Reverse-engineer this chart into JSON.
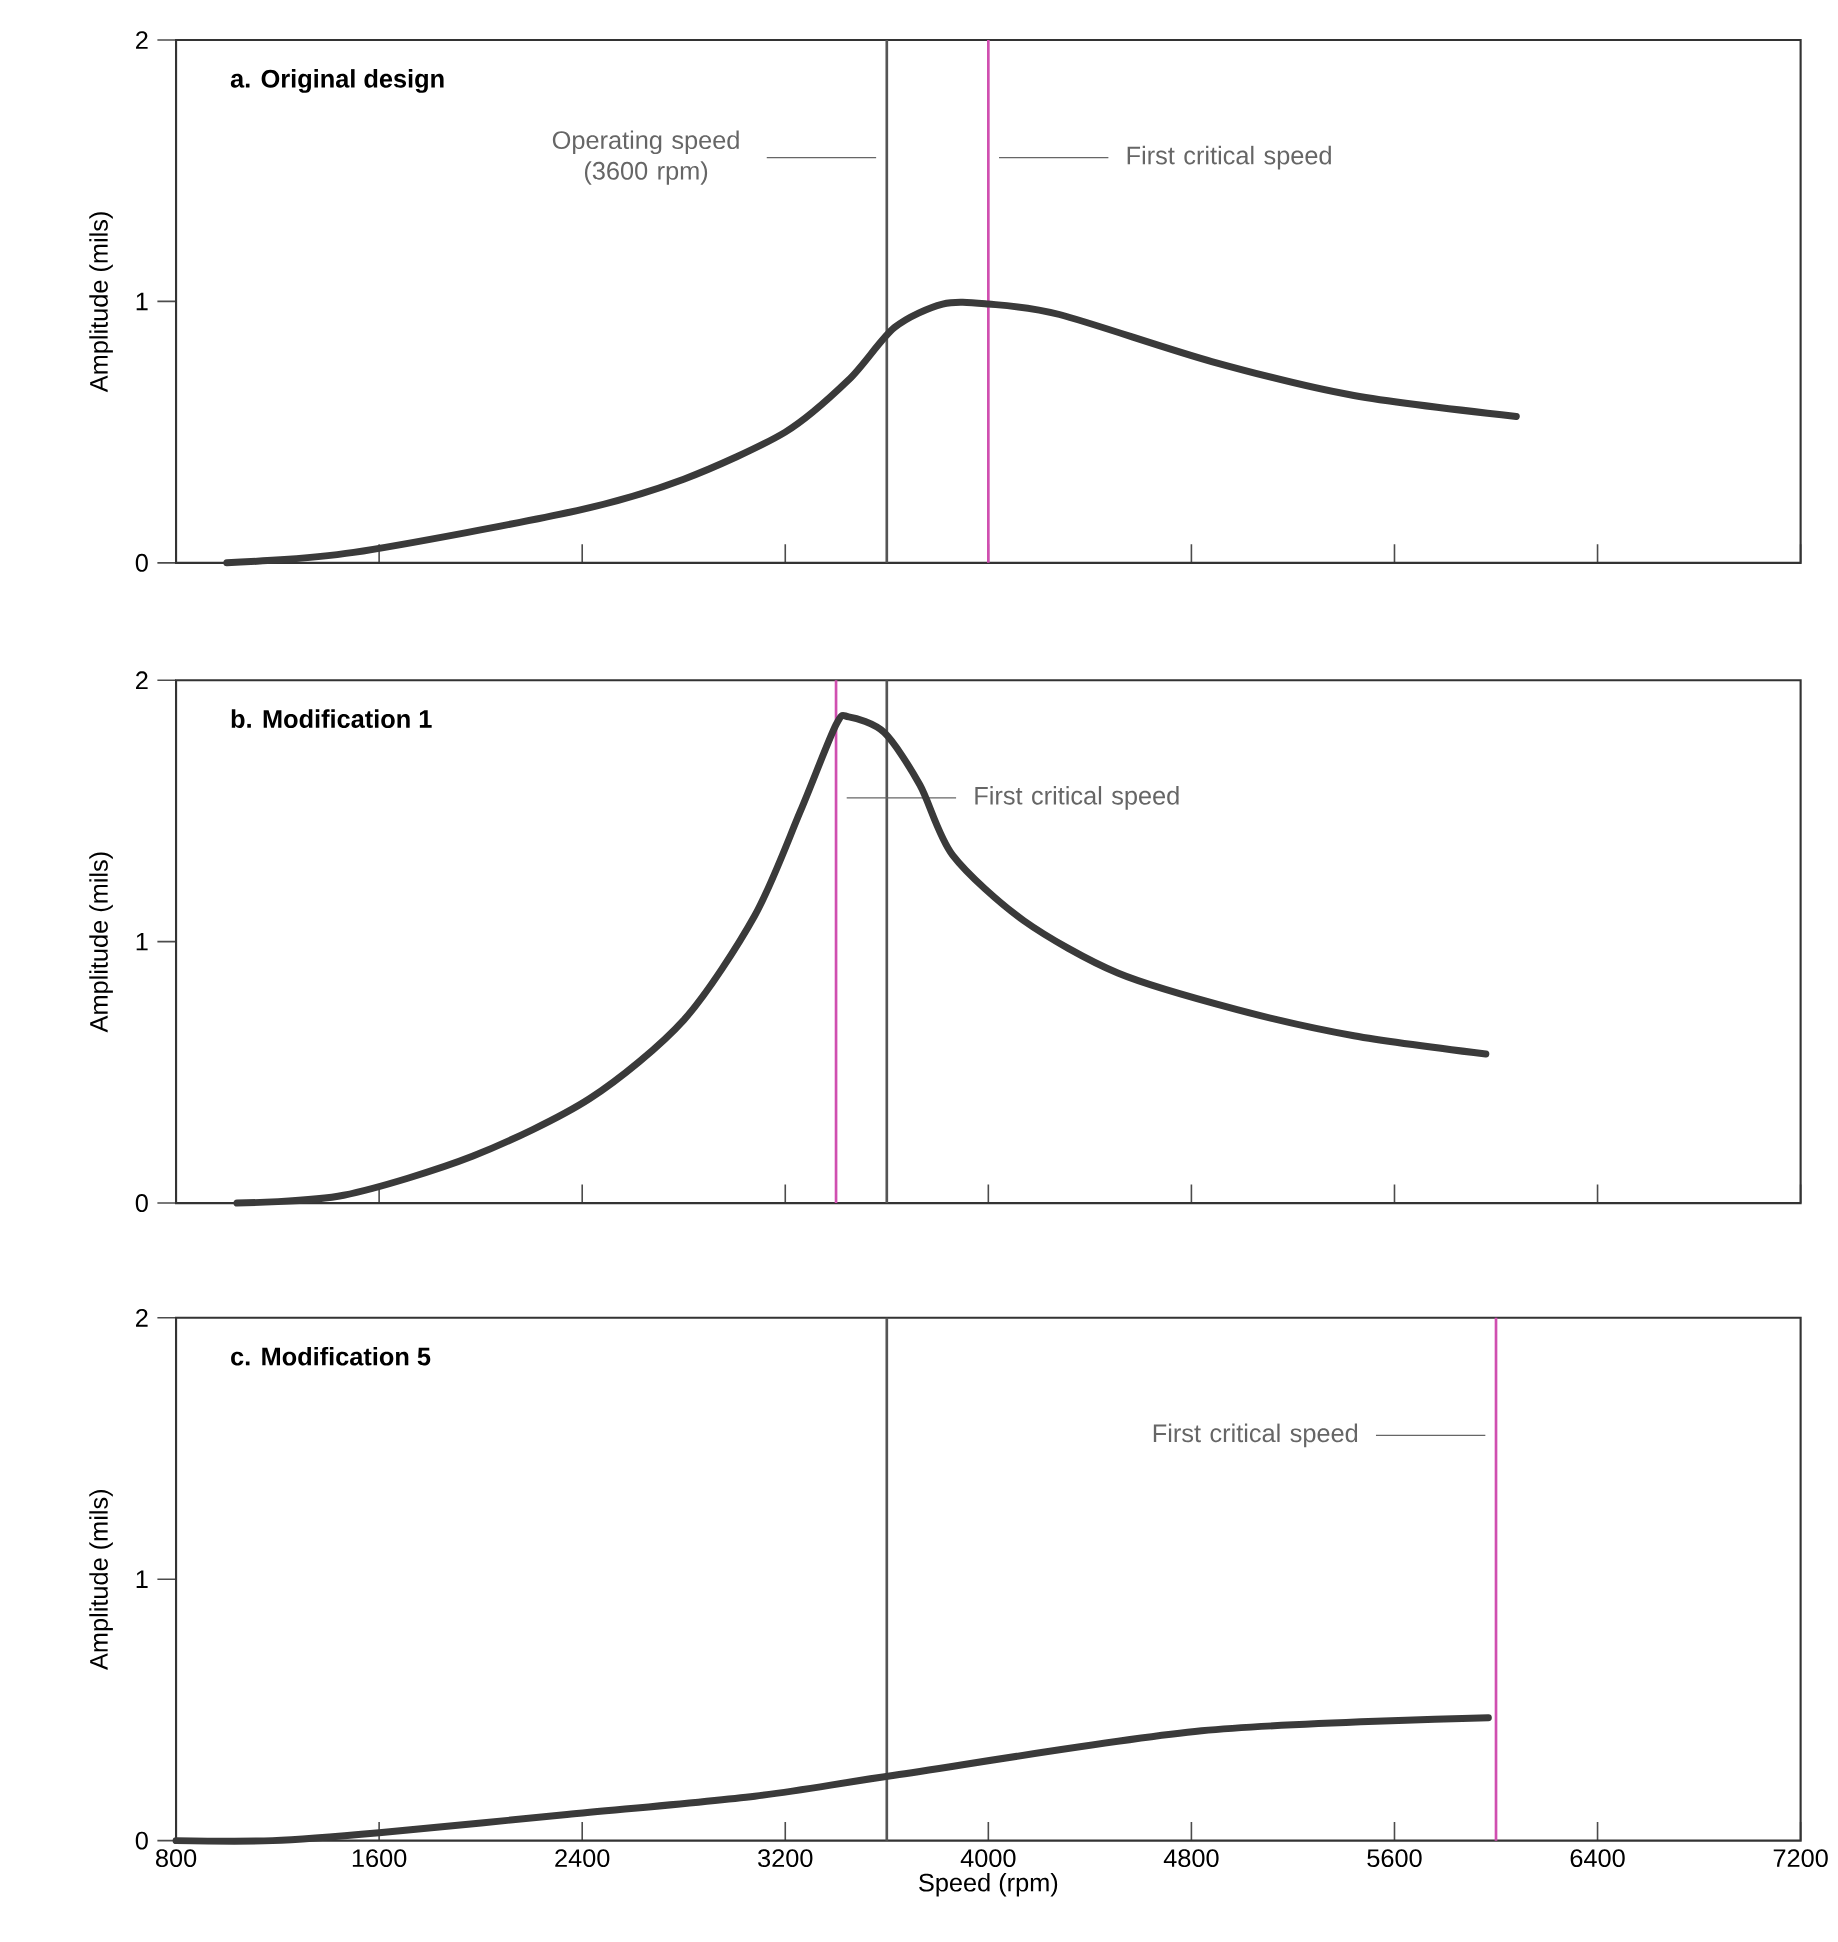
{
  "chart_data": [
    {
      "type": "line",
      "title": "a. Original design",
      "ylabel": "Amplitude (mils)",
      "xlim": [
        800,
        7200
      ],
      "ylim": [
        0,
        2
      ],
      "xticks": [
        800,
        1600,
        2400,
        3200,
        4000,
        4800,
        5600,
        6400,
        7200
      ],
      "yticks": [
        0,
        1,
        2
      ],
      "tick_labels": "y",
      "series": [
        {
          "color": "#3a3a3a",
          "x": [
            1000,
            1500,
            2380,
            2800,
            3200,
            3450,
            3630,
            3820,
            4000,
            4280,
            4880,
            5440,
            6080
          ],
          "values": [
            0,
            0.04,
            0.2,
            0.32,
            0.5,
            0.7,
            0.9,
            0.99,
            0.99,
            0.95,
            0.77,
            0.64,
            0.56
          ]
        }
      ],
      "ref_lines": [
        {
          "axis": "x",
          "value": 3600,
          "color": "#555555",
          "label": "Operating speed (3600 rpm)"
        },
        {
          "axis": "x",
          "value": 4000,
          "color": "#d04fb0",
          "label": "First critical speed"
        }
      ]
    },
    {
      "type": "line",
      "title": "b. Modification 1",
      "ylabel": "Amplitude (mils)",
      "xlim": [
        800,
        7200
      ],
      "ylim": [
        0,
        2
      ],
      "xticks": [
        800,
        1600,
        2400,
        3200,
        4000,
        4800,
        5600,
        6400,
        7200
      ],
      "yticks": [
        0,
        1,
        2
      ],
      "tick_labels": "y",
      "series": [
        {
          "color": "#3a3a3a",
          "x": [
            1040,
            1460,
            1970,
            2430,
            2800,
            3080,
            3260,
            3400,
            3450,
            3590,
            3730,
            3860,
            4140,
            4510,
            4980,
            5440,
            5960
          ],
          "values": [
            0,
            0.03,
            0.18,
            0.4,
            0.7,
            1.1,
            1.5,
            1.83,
            1.86,
            1.8,
            1.6,
            1.33,
            1.08,
            0.88,
            0.74,
            0.64,
            0.57
          ]
        }
      ],
      "ref_lines": [
        {
          "axis": "x",
          "value": 3600,
          "color": "#555555"
        },
        {
          "axis": "x",
          "value": 3400,
          "color": "#d04fb0",
          "label": "First critical speed"
        }
      ]
    },
    {
      "type": "line",
      "title": "c. Modification 5",
      "xlabel": "Speed (rpm)",
      "ylabel": "Amplitude (mils)",
      "xlim": [
        800,
        7200
      ],
      "ylim": [
        0,
        2
      ],
      "xticks": [
        800,
        1600,
        2400,
        3200,
        4000,
        4800,
        5600,
        6400,
        7200
      ],
      "yticks": [
        0,
        1,
        2
      ],
      "series": [
        {
          "color": "#3a3a3a",
          "x": [
            800,
            1180,
            1600,
            2340,
            3080,
            3630,
            4840,
            5970
          ],
          "values": [
            0,
            0,
            0.03,
            0.1,
            0.17,
            0.25,
            0.42,
            0.47
          ]
        }
      ],
      "ref_lines": [
        {
          "axis": "x",
          "value": 3600,
          "color": "#555555"
        },
        {
          "axis": "x",
          "value": 6000,
          "color": "#d04fb0",
          "label": "First critical speed"
        }
      ]
    }
  ]
}
